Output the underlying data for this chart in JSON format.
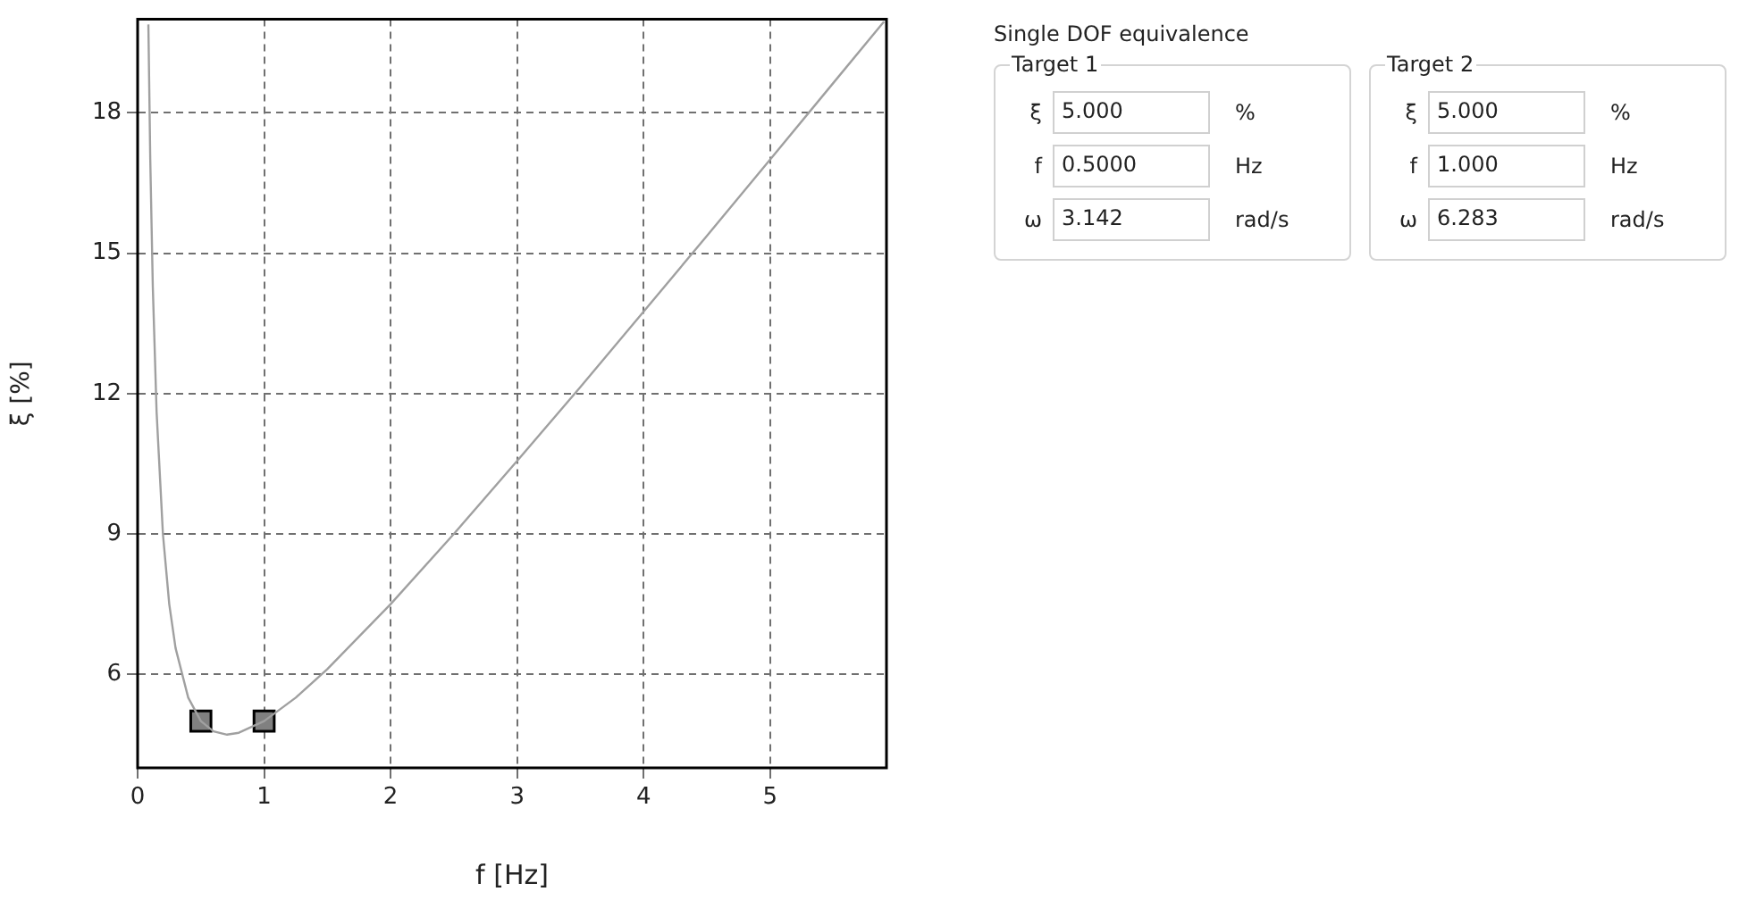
{
  "chart_data": [
    {
      "type": "line",
      "xlabel": "f [Hz]",
      "ylabel": "ξ [%]",
      "xlim": [
        0,
        5.92
      ],
      "xticks": [
        0,
        1,
        2,
        3,
        4,
        5
      ],
      "ylim": [
        4,
        20
      ],
      "yticks": [
        6,
        9,
        12,
        15,
        18
      ],
      "grid": true,
      "legend": false,
      "series": [
        {
          "type": "line",
          "color": "#a0a0a0",
          "marker": "none",
          "x": [
            0.085,
            0.1,
            0.12,
            0.15,
            0.2,
            0.25,
            0.3,
            0.4,
            0.5,
            0.6,
            0.707,
            0.8,
            1,
            1.25,
            1.5,
            2,
            2.5,
            3,
            3.5,
            4,
            4.5,
            5,
            5.5,
            5.9
          ],
          "values": [
            19.89,
            17.0,
            14.29,
            11.61,
            9.0,
            7.5,
            6.56,
            5.5,
            5.0,
            4.78,
            4.71,
            4.75,
            5.0,
            5.5,
            6.11,
            7.5,
            9.0,
            10.56,
            12.14,
            13.75,
            15.37,
            17.0,
            18.64,
            19.95
          ]
        },
        {
          "type": "scatter",
          "color": "#808080",
          "marker": "square",
          "x": [
            0.5,
            1
          ],
          "values": [
            5,
            5
          ]
        }
      ]
    },
    {
      "type": "other",
      "title": "Single DOF equivalence",
      "annotations": [
        "Target 1",
        "ξ",
        "5.000",
        "%",
        "f",
        "0.5000",
        "Hz",
        "ω",
        "3.142",
        "rad/s",
        "Target 2",
        "ξ",
        "5.000",
        "%",
        "f",
        "1.000",
        "Hz",
        "ω",
        "6.283",
        "rad/s"
      ]
    }
  ]
}
